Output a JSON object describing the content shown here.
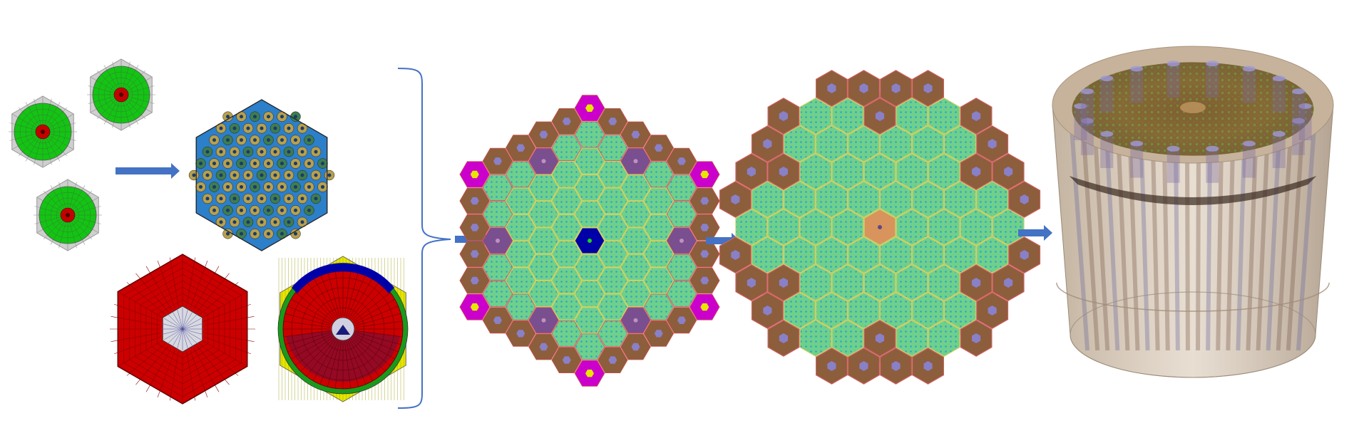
{
  "colors": {
    "background": "#ffffff",
    "arrow": "#4472c4",
    "brace": "#4472c4",
    "fuel_green": "#13c413",
    "fuel_red": "#c40000",
    "clad_gray": "#cfcfcf",
    "mesh_line": "#555555",
    "assembly_blue": "#2c7fc9",
    "pin_gold": "#b8a04c",
    "reflector_red": "#cc0000",
    "control_blue": "#0000a8",
    "yellow": "#e6e600",
    "core_green": "#6fd08c",
    "reflector_brown": "#8c5e3c",
    "magenta": "#cc00cc",
    "purple": "#7a4f8f",
    "vessel_gray": "#c7c3b8",
    "center_orange": "#d9935c",
    "cylinder_tan": "#c7b5a0"
  },
  "icons": {
    "arrow": "right-arrow-icon",
    "brace": "right-curly-brace-icon"
  },
  "stages": [
    "pin-cell-meshes",
    "assembly-mesh",
    "reflector-and-control-assembly-meshes",
    "core-layout-mesh",
    "core-with-vessel-mesh",
    "extruded-3d-core-mesh"
  ]
}
